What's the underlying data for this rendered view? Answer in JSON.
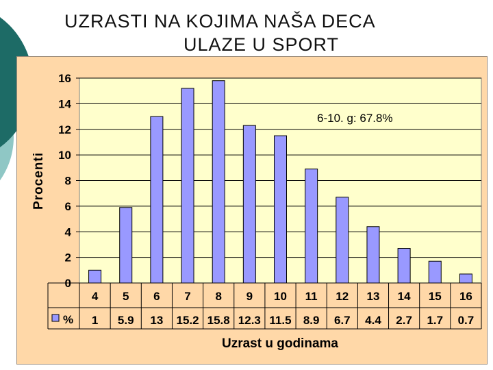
{
  "slide": {
    "title_line1": "UZRASTI NA KOJIMA NAŠA DECA",
    "title_line2": "ULAZE U SPORT"
  },
  "colors": {
    "bar": "#9999ff",
    "plot_bg": "#ffffcc",
    "panel_bg": "#ffd8a8",
    "deco_dark": "#1d6b66",
    "deco_light": "#8fc7c5"
  },
  "chart_data": {
    "type": "bar",
    "title": "",
    "xlabel": "Uzrast u godinama",
    "ylabel": "Procenti",
    "categories": [
      "4",
      "5",
      "6",
      "7",
      "8",
      "9",
      "10",
      "11",
      "12",
      "13",
      "14",
      "15",
      "16"
    ],
    "series": [
      {
        "name": "%",
        "values": [
          1,
          5.9,
          13,
          15.2,
          15.8,
          12.3,
          11.5,
          8.9,
          6.7,
          4.4,
          2.7,
          1.7,
          0.7
        ]
      }
    ],
    "table_labels": [
      "1",
      "5.9",
      "13",
      "15.2",
      "15.8",
      "12.3",
      "11.5",
      "8.9",
      "6.7",
      "4.4",
      "2.7",
      "1.7",
      "0.7"
    ],
    "ylim": [
      0,
      16
    ],
    "yticks": [
      "0",
      "2",
      "4",
      "6",
      "8",
      "10",
      "12",
      "14",
      "16"
    ],
    "grid": true,
    "annotation": "6-10. g: 67.8%",
    "legend": "in data table"
  }
}
